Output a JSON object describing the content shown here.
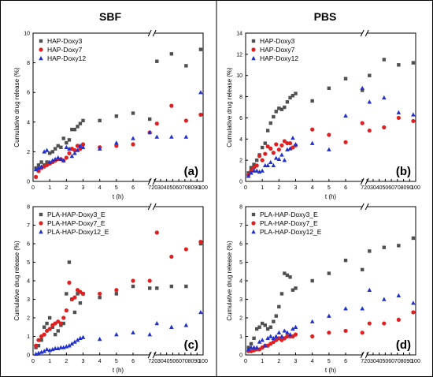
{
  "columns": [
    {
      "title": "SBF"
    },
    {
      "title": "PBS"
    }
  ],
  "chart_data": [
    {
      "type": "scatter",
      "panel": "(a)",
      "xlabel": "t (h)",
      "ylabel": "Cumulative drug release (%)",
      "x_break": [
        7,
        20
      ],
      "xlim": [
        0,
        100
      ],
      "ylim": [
        0,
        10
      ],
      "x_ticks": [
        0,
        1,
        2,
        3,
        4,
        5,
        6,
        7,
        20,
        30,
        40,
        50,
        60,
        70,
        80,
        90,
        100
      ],
      "y_ticks": [
        0,
        2,
        4,
        6,
        8,
        10
      ],
      "legend_position": "top-left",
      "series": [
        {
          "name": "HAP-Doxy3",
          "marker": "square",
          "color": "#505050",
          "x": [
            0.17,
            0.33,
            0.5,
            0.67,
            0.83,
            1,
            1.17,
            1.33,
            1.5,
            1.67,
            1.83,
            2,
            2.17,
            2.33,
            2.5,
            2.67,
            2.83,
            3,
            4,
            5,
            6,
            7,
            24,
            48,
            72,
            96
          ],
          "y": [
            0.9,
            1.1,
            1.3,
            1.1,
            1.3,
            1.9,
            2.0,
            2.2,
            2.4,
            2.3,
            2.9,
            2.6,
            2.8,
            3.5,
            3.5,
            3.7,
            3.9,
            4.1,
            4.1,
            4.4,
            4.6,
            4.2,
            8.1,
            8.6,
            7.8,
            8.9
          ]
        },
        {
          "name": "HAP-Doxy7",
          "marker": "circle",
          "color": "#e02020",
          "x": [
            0.17,
            0.33,
            0.5,
            0.67,
            0.83,
            1,
            1.17,
            1.33,
            1.5,
            1.67,
            1.83,
            2,
            2.17,
            2.33,
            2.5,
            2.67,
            2.83,
            3,
            4,
            5,
            6,
            7,
            24,
            48,
            72,
            96
          ],
          "y": [
            0.3,
            0.7,
            0.9,
            1.0,
            1.1,
            1.2,
            1.3,
            1.4,
            1.5,
            1.5,
            1.4,
            1.6,
            1.9,
            2.2,
            2.1,
            2.4,
            2.2,
            2.5,
            2.3,
            2.4,
            2.5,
            3.3,
            3.9,
            5.1,
            4.1,
            4.5
          ]
        },
        {
          "name": "HAP-Doxy12",
          "marker": "triangle",
          "color": "#1f2fd0",
          "x": [
            0.17,
            0.33,
            0.5,
            0.67,
            0.83,
            1,
            1.17,
            1.33,
            1.5,
            1.67,
            1.83,
            2,
            2.17,
            2.33,
            2.5,
            2.67,
            2.83,
            3,
            4,
            5,
            6,
            7,
            24,
            48,
            72,
            96
          ],
          "y": [
            0.8,
            0.9,
            1.0,
            2.0,
            2.1,
            1.3,
            1.4,
            1.5,
            1.6,
            1.5,
            1.4,
            2.3,
            2.2,
            1.7,
            1.9,
            2.1,
            2.4,
            2.3,
            2.2,
            2.6,
            2.9,
            3.3,
            3.0,
            3.0,
            3.0,
            6.0
          ]
        }
      ]
    },
    {
      "type": "scatter",
      "panel": "(b)",
      "xlabel": "t (h)",
      "ylabel": "Cumulative drug release (%)",
      "x_break": [
        7,
        20
      ],
      "xlim": [
        0,
        100
      ],
      "ylim": [
        0,
        14
      ],
      "x_ticks": [
        0,
        1,
        2,
        3,
        4,
        5,
        6,
        7,
        20,
        30,
        40,
        50,
        60,
        70,
        80,
        90,
        100
      ],
      "y_ticks": [
        0,
        2,
        4,
        6,
        8,
        10,
        12,
        14
      ],
      "legend_position": "top-left",
      "series": [
        {
          "name": "HAP-Doxy3",
          "marker": "square",
          "color": "#505050",
          "x": [
            0.17,
            0.33,
            0.5,
            0.67,
            0.83,
            1,
            1.17,
            1.33,
            1.5,
            1.67,
            1.83,
            2,
            2.17,
            2.33,
            2.5,
            2.67,
            2.83,
            3,
            4,
            5,
            6,
            7,
            24,
            48,
            72,
            96
          ],
          "y": [
            0.8,
            1.3,
            1.6,
            2.0,
            2.5,
            3.2,
            3.6,
            4.8,
            5.5,
            6.1,
            6.6,
            6.9,
            6.8,
            7.0,
            7.5,
            7.9,
            8.1,
            8.3,
            7.6,
            8.8,
            9.7,
            8.6,
            10.0,
            11.5,
            11.0,
            11.2
          ]
        },
        {
          "name": "HAP-Doxy7",
          "marker": "circle",
          "color": "#e02020",
          "x": [
            0.17,
            0.33,
            0.5,
            0.67,
            0.83,
            1,
            1.17,
            1.33,
            1.5,
            1.67,
            1.83,
            2,
            2.17,
            2.33,
            2.5,
            2.67,
            2.83,
            3,
            4,
            5,
            6,
            7,
            24,
            48,
            72,
            96
          ],
          "y": [
            0.6,
            1.0,
            1.3,
            1.5,
            2.4,
            2.0,
            2.6,
            3.3,
            3.1,
            2.7,
            3.5,
            3.0,
            3.4,
            3.8,
            3.6,
            3.6,
            3.2,
            3.4,
            4.9,
            4.4,
            3.7,
            5.5,
            4.8,
            5.1,
            6.0,
            5.7
          ]
        },
        {
          "name": "HAP-Doxy12",
          "marker": "triangle",
          "color": "#1f2fd0",
          "x": [
            0.17,
            0.33,
            0.5,
            0.67,
            0.83,
            1,
            1.17,
            1.33,
            1.5,
            1.67,
            1.83,
            2,
            2.17,
            2.33,
            2.5,
            2.67,
            2.83,
            3,
            4,
            5,
            6,
            7,
            24,
            48,
            72,
            96
          ],
          "y": [
            0.5,
            0.8,
            1.0,
            1.0,
            0.9,
            1.0,
            1.5,
            1.5,
            1.8,
            1.5,
            2.2,
            2.1,
            2.5,
            2.0,
            3.0,
            3.1,
            4.1,
            3.5,
            3.6,
            3.0,
            6.2,
            8.8,
            7.5,
            7.9,
            6.5,
            6.3
          ]
        }
      ]
    },
    {
      "type": "scatter",
      "panel": "(c)",
      "xlabel": "t (h)",
      "ylabel": "Cumulative drug release (%)",
      "x_break": [
        7,
        20
      ],
      "xlim": [
        0,
        100
      ],
      "ylim": [
        0,
        8
      ],
      "x_ticks": [
        0,
        1,
        2,
        3,
        4,
        5,
        6,
        7,
        20,
        30,
        40,
        50,
        60,
        70,
        80,
        90,
        100
      ],
      "y_ticks": [
        0,
        1,
        2,
        3,
        4,
        5,
        6,
        7,
        8
      ],
      "legend_position": "top-left",
      "series": [
        {
          "name": "PLA-HAP-Doxy3_E",
          "marker": "square",
          "color": "#505050",
          "x": [
            0.17,
            0.33,
            0.5,
            0.67,
            0.83,
            1,
            1.17,
            1.33,
            1.5,
            1.67,
            1.83,
            2,
            2.17,
            2.33,
            2.5,
            2.67,
            2.83,
            3,
            4,
            5,
            6,
            7,
            24,
            48,
            72,
            96
          ],
          "y": [
            0.4,
            0.5,
            0.8,
            1.5,
            1.7,
            2.0,
            1.5,
            1.1,
            1.3,
            1.6,
            1.7,
            3.3,
            5.0,
            3.0,
            2.3,
            3.3,
            2.8,
            3.3,
            3.1,
            3.3,
            3.7,
            3.6,
            3.6,
            3.7,
            3.7,
            6.0
          ]
        },
        {
          "name": "PLA-HAP-Doxy7_E",
          "marker": "circle",
          "color": "#e02020",
          "x": [
            0.17,
            0.33,
            0.5,
            0.67,
            0.83,
            1,
            1.17,
            1.33,
            1.5,
            1.67,
            1.83,
            2,
            2.17,
            2.33,
            2.5,
            2.67,
            2.83,
            3,
            4,
            5,
            6,
            7,
            24,
            48,
            72,
            96
          ],
          "y": [
            0.5,
            0.8,
            1.0,
            1.1,
            1.3,
            1.4,
            1.6,
            1.7,
            1.8,
            1.7,
            2.0,
            2.4,
            3.9,
            3.0,
            3.1,
            3.5,
            3.4,
            3.3,
            3.3,
            3.5,
            4.0,
            4.0,
            6.6,
            5.3,
            5.7,
            6.1
          ]
        },
        {
          "name": "PLA-HAP-Doxy12_E",
          "marker": "triangle",
          "color": "#1f2fd0",
          "x": [
            0.17,
            0.33,
            0.5,
            0.67,
            0.83,
            1,
            1.17,
            1.33,
            1.5,
            1.67,
            1.83,
            2,
            2.17,
            2.33,
            2.5,
            2.67,
            2.83,
            3,
            4,
            5,
            6,
            7,
            24,
            48,
            72,
            96
          ],
          "y": [
            0.05,
            0.1,
            0.15,
            0.2,
            0.3,
            0.25,
            0.3,
            0.35,
            0.35,
            0.4,
            0.4,
            0.45,
            0.5,
            0.6,
            0.7,
            0.8,
            0.9,
            0.95,
            0.85,
            1.1,
            1.2,
            1.1,
            1.7,
            1.5,
            1.6,
            2.3
          ]
        }
      ]
    },
    {
      "type": "scatter",
      "panel": "(d)",
      "xlabel": "t (h)",
      "ylabel": "Cumulative drug release (%)",
      "x_break": [
        7,
        20
      ],
      "xlim": [
        0,
        100
      ],
      "ylim": [
        0,
        8
      ],
      "x_ticks": [
        0,
        1,
        2,
        3,
        4,
        5,
        6,
        7,
        20,
        30,
        40,
        50,
        60,
        70,
        80,
        90,
        100
      ],
      "y_ticks": [
        0,
        1,
        2,
        3,
        4,
        5,
        6,
        7,
        8
      ],
      "legend_position": "top-left",
      "series": [
        {
          "name": "PLA-HAP-Doxy3_E",
          "marker": "square",
          "color": "#505050",
          "x": [
            0.17,
            0.33,
            0.5,
            0.67,
            0.83,
            1,
            1.17,
            1.33,
            1.5,
            1.67,
            1.83,
            2,
            2.17,
            2.33,
            2.5,
            2.67,
            2.83,
            3,
            4,
            5,
            6,
            7,
            24,
            48,
            72,
            96
          ],
          "y": [
            0.4,
            0.6,
            0.9,
            1.4,
            1.5,
            1.7,
            1.6,
            1.4,
            1.5,
            1.8,
            2.1,
            2.6,
            3.3,
            4.4,
            4.3,
            4.2,
            3.5,
            3.6,
            4.0,
            4.4,
            5.1,
            4.6,
            5.6,
            5.8,
            5.9,
            6.3
          ]
        },
        {
          "name": "PLA-HAP-Doxy7_E",
          "marker": "circle",
          "color": "#e02020",
          "x": [
            0.17,
            0.33,
            0.5,
            0.67,
            0.83,
            1,
            1.17,
            1.33,
            1.5,
            1.67,
            1.83,
            2,
            2.17,
            2.33,
            2.5,
            2.67,
            2.83,
            3,
            4,
            5,
            6,
            7,
            24,
            48,
            72,
            96
          ],
          "y": [
            0.2,
            0.2,
            0.25,
            0.3,
            0.3,
            0.4,
            0.5,
            0.5,
            0.6,
            0.7,
            0.8,
            0.9,
            0.8,
            0.9,
            1.0,
            1.0,
            1.0,
            1.1,
            1.0,
            1.2,
            1.3,
            1.2,
            1.7,
            1.7,
            1.9,
            2.3
          ]
        },
        {
          "name": "PLA-HAP-Doxy12_E",
          "marker": "triangle",
          "color": "#1f2fd0",
          "x": [
            0.17,
            0.33,
            0.5,
            0.67,
            0.83,
            1,
            1.17,
            1.33,
            1.5,
            1.67,
            1.83,
            2,
            2.17,
            2.33,
            2.5,
            2.67,
            2.83,
            3,
            4,
            5,
            6,
            7,
            24,
            48,
            72,
            96
          ],
          "y": [
            0.3,
            0.4,
            0.4,
            0.4,
            0.7,
            0.8,
            0.5,
            0.9,
            1.0,
            0.9,
            1.0,
            1.2,
            1.0,
            1.3,
            1.2,
            1.1,
            1.4,
            1.5,
            1.8,
            2.1,
            2.5,
            2.5,
            3.5,
            3.0,
            3.2,
            2.8
          ]
        }
      ]
    }
  ]
}
